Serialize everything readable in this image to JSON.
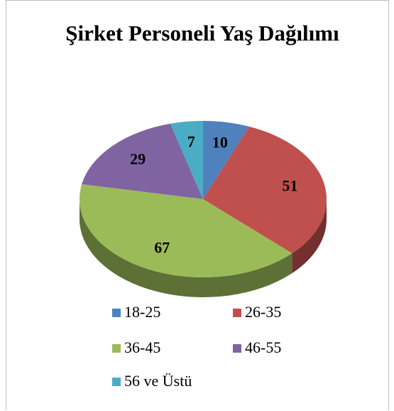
{
  "chart_data": {
    "type": "pie",
    "title": "Şirket Personeli Yaş Dağılımı",
    "categories": [
      "18-25",
      "26-35",
      "36-45",
      "46-55",
      "56 ve Üstü"
    ],
    "values": [
      10,
      51,
      67,
      29,
      7
    ],
    "colors": [
      "#4f81bd",
      "#c0504d",
      "#9bbb59",
      "#8064a2",
      "#4bacc6"
    ],
    "legend": "bottom"
  }
}
